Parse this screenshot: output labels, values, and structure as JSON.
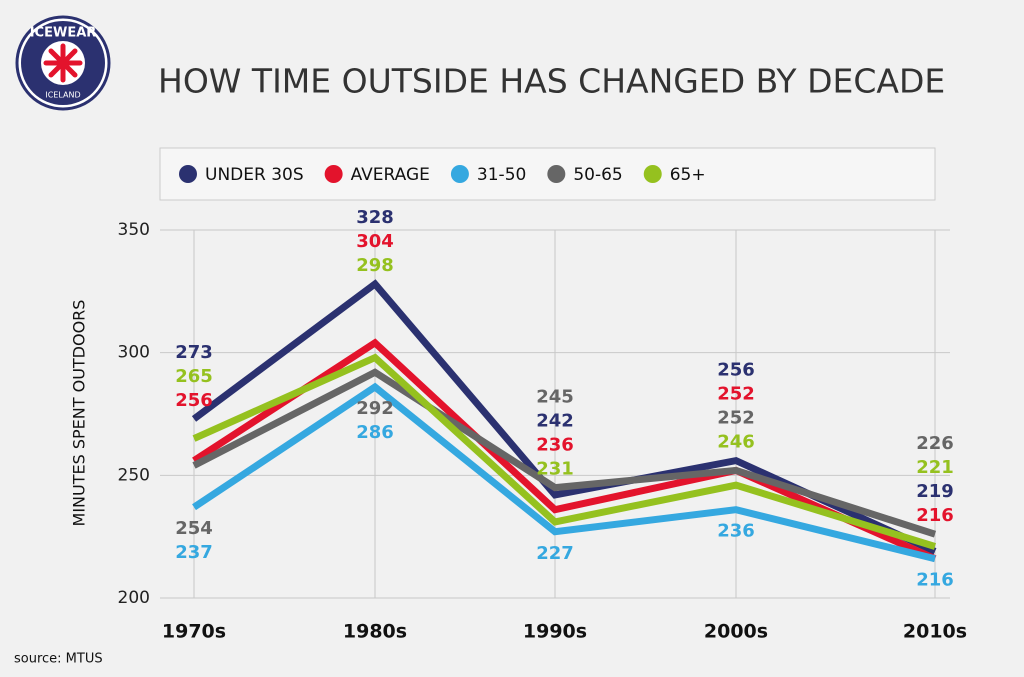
{
  "logo": {
    "brand": "ICEWEAR",
    "country": "ICELAND"
  },
  "source": "source: MTUS",
  "chart_data": {
    "type": "line",
    "title": "HOW TIME OUTSIDE HAS CHANGED BY DECADE",
    "y_label": "MINUTES SPENT OUTDOORS",
    "categories": [
      "1970s",
      "1980s",
      "1990s",
      "2000s",
      "2010s"
    ],
    "series": [
      {
        "name": "UNDER 30S",
        "color": "#2b3170",
        "values": [
          273,
          328,
          242,
          256,
          219
        ]
      },
      {
        "name": "AVERAGE",
        "color": "#e3132c",
        "values": [
          256,
          304,
          236,
          252,
          216
        ]
      },
      {
        "name": "31-50",
        "color": "#35a8e0",
        "values": [
          237,
          286,
          227,
          236,
          216
        ]
      },
      {
        "name": "50-65",
        "color": "#666666",
        "values": [
          254,
          292,
          245,
          252,
          226
        ]
      },
      {
        "name": "65+",
        "color": "#95c11f",
        "values": [
          265,
          298,
          231,
          246,
          221
        ]
      }
    ],
    "ylim": [
      200,
      350
    ],
    "yticks": [
      200,
      250,
      300,
      350
    ],
    "grid": true
  }
}
